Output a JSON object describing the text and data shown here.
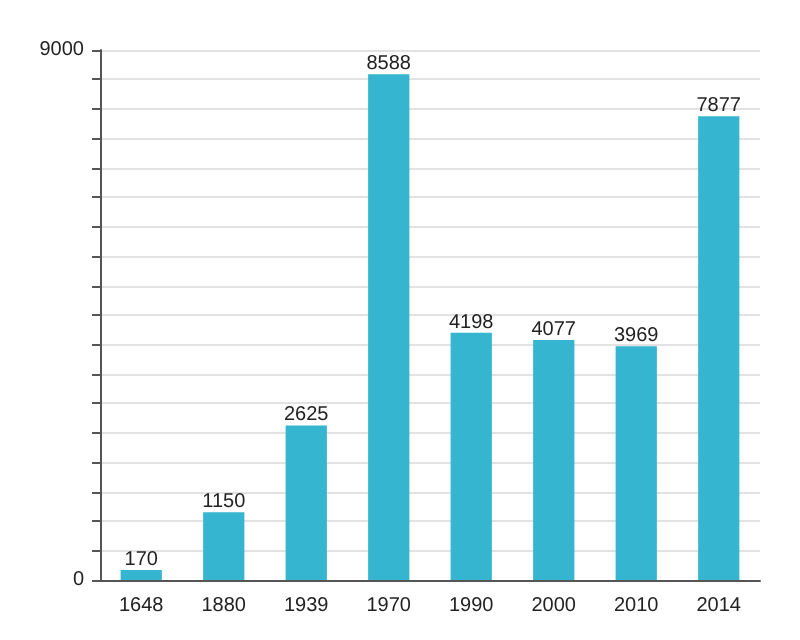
{
  "chart_data": {
    "type": "bar",
    "categories": [
      "1648",
      "1880",
      "1939",
      "1970",
      "1990",
      "2000",
      "2010",
      "2014"
    ],
    "values": [
      170,
      1150,
      2625,
      8588,
      4198,
      4077,
      3969,
      7877
    ],
    "color": "#35b5d0",
    "data_labels": true,
    "grid": "y",
    "ylim": [
      0,
      9000
    ],
    "yticks": [
      0,
      {
        "value": 500,
        "label": null
      },
      {
        "value": 1000,
        "label": null
      },
      {
        "value": 1500,
        "label": null
      },
      {
        "value": 2000,
        "label": null
      },
      {
        "value": 2500,
        "label": null
      },
      {
        "value": 3000,
        "label": null
      },
      {
        "value": 3500,
        "label": null
      },
      {
        "value": 4000,
        "label": null
      },
      {
        "value": 4500,
        "label": null
      },
      {
        "value": 5000,
        "label": null
      },
      {
        "value": 5500,
        "label": null
      },
      {
        "value": 6000,
        "label": null
      },
      {
        "value": 6500,
        "label": null
      },
      {
        "value": 7000,
        "label": null
      },
      {
        "value": 7500,
        "label": null
      },
      {
        "value": 8000,
        "label": null
      },
      {
        "value": 8500,
        "label": null
      },
      9000
    ]
  }
}
